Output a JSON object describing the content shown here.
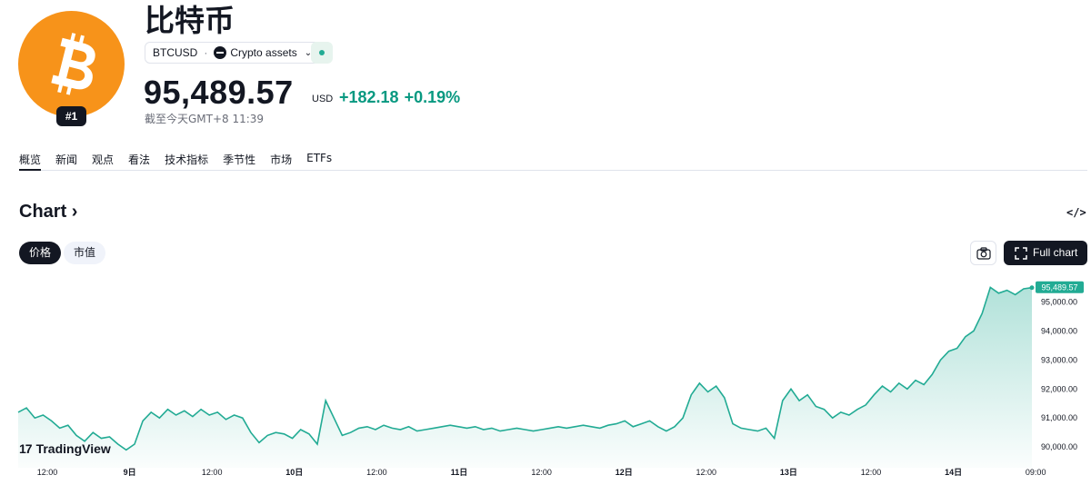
{
  "asset": {
    "name": "比特币",
    "rank": "#1",
    "symbol": "BTCUSD",
    "category": "Crypto assets",
    "logo_icon": "bitcoin-icon"
  },
  "quote": {
    "price": "95,489.57",
    "currency": "USD",
    "change_abs": "+182.18",
    "change_pct": "+0.19%",
    "as_of": "截至今天GMT+8 11:39",
    "positive_color": "#089981"
  },
  "tabs": [
    {
      "label": "概览",
      "active": true
    },
    {
      "label": "新闻"
    },
    {
      "label": "观点"
    },
    {
      "label": "看法"
    },
    {
      "label": "技术指标"
    },
    {
      "label": "季节性"
    },
    {
      "label": "市场"
    },
    {
      "label": "ETFs"
    }
  ],
  "chart_section": {
    "heading": "Chart",
    "heading_icon": "chevron-right-icon",
    "embed_icon": "code-embed-icon",
    "price_toggle": "价格",
    "marketcap_toggle": "市值",
    "camera_icon": "camera-icon",
    "fullchart_label": "Full chart",
    "fullchart_icon": "fullscreen-icon",
    "watermark": "TradingView"
  },
  "chart_data": {
    "type": "area",
    "title": "",
    "xlabel": "",
    "ylabel": "",
    "x_ticks": [
      "12:00",
      "9日",
      "12:00",
      "10日",
      "12:00",
      "11日",
      "12:00",
      "12日",
      "12:00",
      "13日",
      "12:00",
      "14日",
      "09:00"
    ],
    "y_ticks": [
      "90,000.00",
      "91,000.00",
      "92,000.00",
      "93,000.00",
      "94,000.00",
      "95,000.00"
    ],
    "ylim": [
      89600,
      95700
    ],
    "last_price_label": "95,489.57",
    "line_color": "#22ab94",
    "series": [
      {
        "values": [
          91200,
          91350,
          91000,
          91100,
          90900,
          90650,
          90750,
          90400,
          90200,
          90500,
          90300,
          90350,
          90100,
          89900,
          90100,
          90900,
          91200,
          91000,
          91300,
          91100,
          91250,
          91050,
          91300,
          91100,
          91200,
          90950,
          91100,
          91000,
          90500,
          90150,
          90400,
          90500,
          90450,
          90300,
          90600,
          90450,
          90100,
          91600,
          91000,
          90400,
          90500,
          90650,
          90700,
          90600,
          90750,
          90650,
          90600,
          90700,
          90550,
          90600,
          90650,
          90700,
          90750,
          90700,
          90650,
          90700,
          90600,
          90650,
          90550,
          90600,
          90650,
          90600,
          90550,
          90600,
          90650,
          90700,
          90650,
          90700,
          90750,
          90700,
          90650,
          90750,
          90800,
          90900,
          90700,
          90800,
          90900,
          90700,
          90550,
          90700,
          91000,
          91800,
          92200,
          91900,
          92100,
          91700,
          90800,
          90650,
          90600,
          90550,
          90650,
          90300,
          91600,
          92000,
          91600,
          91800,
          91400,
          91300,
          91000,
          91200,
          91100,
          91300,
          91450,
          91800,
          92100,
          91900,
          92200,
          92000,
          92300,
          92150,
          92500,
          93000,
          93300,
          93400,
          93800,
          94000,
          94600,
          95500,
          95300,
          95400,
          95250,
          95450,
          95490
        ]
      }
    ]
  }
}
